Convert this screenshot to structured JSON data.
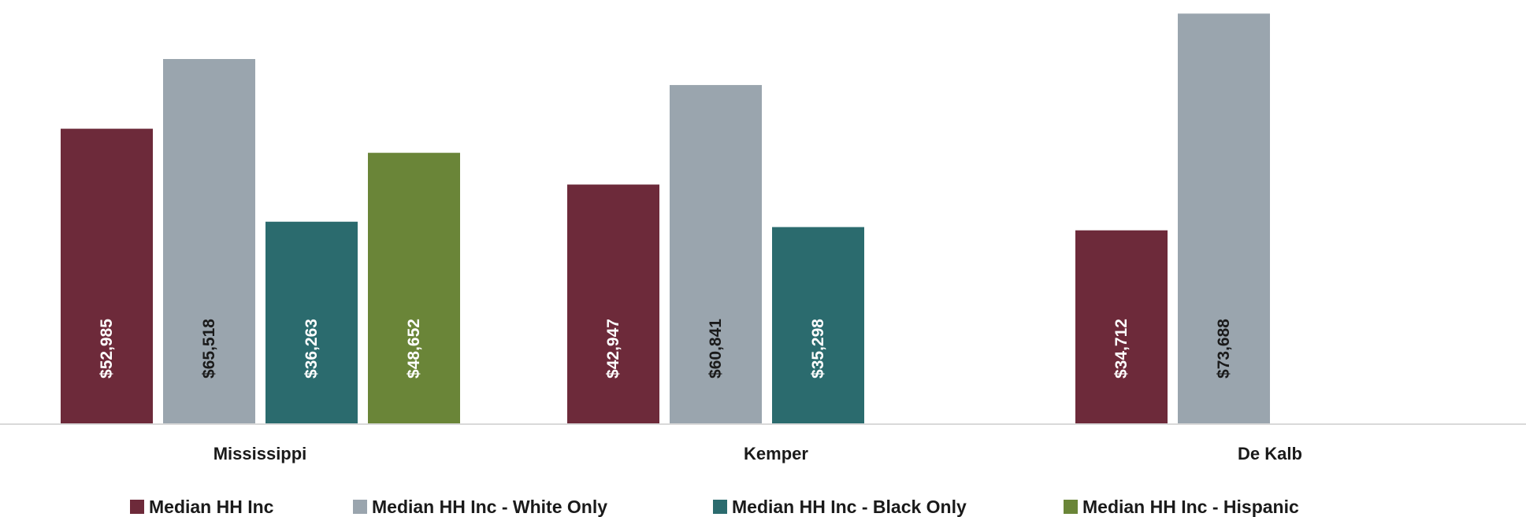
{
  "chart_data": {
    "type": "bar",
    "categories": [
      "Mississippi",
      "Kemper",
      "De Kalb"
    ],
    "series": [
      {
        "name": "Median HH Inc",
        "color": "#6d2a3a",
        "label_color": "#ffffff",
        "values": [
          52985,
          42947,
          34712
        ],
        "labels": [
          "$52,985",
          "$42,947",
          "$34,712"
        ]
      },
      {
        "name": "Median HH Inc - White Only",
        "color": "#9aa5ae",
        "label_color": "#1a1a1a",
        "values": [
          65518,
          60841,
          73688
        ],
        "labels": [
          "$65,518",
          "$60,841",
          "$73,688"
        ]
      },
      {
        "name": "Median HH Inc - Black Only",
        "color": "#2b6b6e",
        "label_color": "#ffffff",
        "values": [
          36263,
          35298,
          null
        ],
        "labels": [
          "$36,263",
          "$35,298",
          ""
        ]
      },
      {
        "name": "Median HH Inc - Hispanic",
        "color": "#6a8538",
        "label_color": "#ffffff",
        "values": [
          48652,
          null,
          null
        ],
        "labels": [
          "$48,652",
          "",
          ""
        ]
      }
    ],
    "ylim": [
      0,
      75000
    ],
    "grid": false,
    "legend_position": "bottom"
  }
}
